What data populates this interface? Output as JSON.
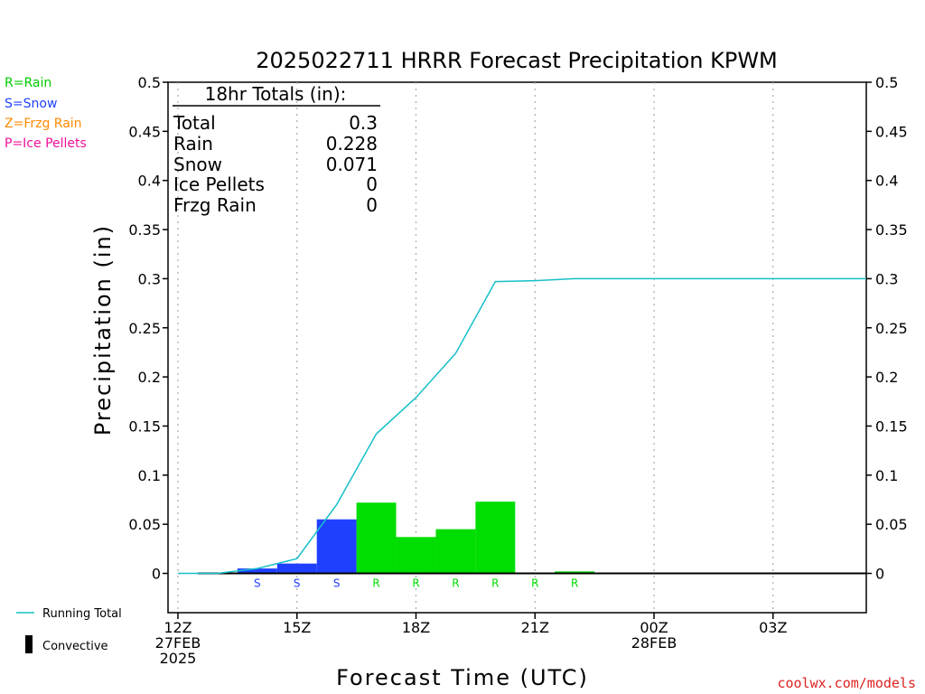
{
  "title": "2025022711 HRRR Forecast Precipitation KPWM",
  "legend": [
    {
      "label": "R=Rain",
      "color": "#00cc00"
    },
    {
      "label": "S=Snow",
      "color": "#2040ff"
    },
    {
      "label": "Z=Frzg Rain",
      "color": "#ff8800"
    },
    {
      "label": "P=Ice Pellets",
      "color": "#ee1199"
    }
  ],
  "totals": {
    "header": "18hr Totals (in):",
    "rows": [
      {
        "label": "Total",
        "value": "0.3"
      },
      {
        "label": "Rain",
        "value": "0.228"
      },
      {
        "label": "Snow",
        "value": "0.071"
      },
      {
        "label": "Ice Pellets",
        "value": "0"
      },
      {
        "label": "Frzg Rain",
        "value": "0"
      }
    ]
  },
  "bottom_legend": {
    "running_total": "Running Total",
    "convective": "Convective"
  },
  "credit": "coolwx.com/models",
  "colors": {
    "rain": "#00dd00",
    "snow": "#2040ff",
    "running_total": "#17c0c8",
    "grid": "#aaaaaa"
  },
  "chart_data": {
    "type": "bar",
    "title": "2025022711 HRRR Forecast Precipitation KPWM",
    "xlabel": "Forecast Time (UTC)",
    "ylabel": "Precipitation (in)",
    "ylim": [
      -0.04,
      0.5
    ],
    "xlim_hours": [
      11.75,
      29.35
    ],
    "yticks": [
      0,
      0.05,
      0.1,
      0.15,
      0.2,
      0.25,
      0.3,
      0.35,
      0.4,
      0.45,
      0.5
    ],
    "ytick_labels": [
      "0",
      "0.05",
      "0.1",
      "0.15",
      "0.2",
      "0.25",
      "0.3",
      "0.35",
      "0.4",
      "0.45",
      "0.5"
    ],
    "xticks": [
      {
        "hour": 12,
        "lines": [
          "12Z",
          "27FEB",
          "2025"
        ]
      },
      {
        "hour": 15,
        "lines": [
          "15Z"
        ]
      },
      {
        "hour": 18,
        "lines": [
          "18Z"
        ]
      },
      {
        "hour": 21,
        "lines": [
          "21Z"
        ]
      },
      {
        "hour": 24,
        "lines": [
          "00Z",
          "28FEB"
        ]
      },
      {
        "hour": 27,
        "lines": [
          "03Z"
        ]
      }
    ],
    "grid": "vertical dotted",
    "hourly_bars": [
      {
        "hour": 13,
        "value": 0.0,
        "type": ""
      },
      {
        "hour": 14,
        "value": 0.005,
        "type": "S"
      },
      {
        "hour": 15,
        "value": 0.01,
        "type": "S"
      },
      {
        "hour": 16,
        "value": 0.055,
        "type": "S"
      },
      {
        "hour": 17,
        "value": 0.072,
        "type": "R"
      },
      {
        "hour": 18,
        "value": 0.037,
        "type": "R"
      },
      {
        "hour": 19,
        "value": 0.045,
        "type": "R"
      },
      {
        "hour": 20,
        "value": 0.073,
        "type": "R"
      },
      {
        "hour": 21,
        "value": 0.0,
        "type": "R"
      },
      {
        "hour": 22,
        "value": 0.002,
        "type": "R"
      },
      {
        "hour": 23,
        "value": 0.0,
        "type": ""
      },
      {
        "hour": 24,
        "value": 0.0,
        "type": ""
      },
      {
        "hour": 25,
        "value": 0.0,
        "type": ""
      },
      {
        "hour": 26,
        "value": 0.0,
        "type": ""
      },
      {
        "hour": 27,
        "value": 0.0,
        "type": ""
      },
      {
        "hour": 28,
        "value": 0.0,
        "type": ""
      },
      {
        "hour": 29,
        "value": 0.0,
        "type": ""
      }
    ],
    "running_total": {
      "name": "Running Total",
      "x": [
        12,
        13,
        14,
        15,
        16,
        17,
        18,
        19,
        20,
        21,
        22,
        23,
        24,
        25,
        26,
        27,
        28,
        29.35
      ],
      "y": [
        0.0,
        0.0,
        0.005,
        0.015,
        0.07,
        0.142,
        0.179,
        0.224,
        0.297,
        0.298,
        0.3,
        0.3,
        0.3,
        0.3,
        0.3,
        0.3,
        0.3,
        0.3
      ]
    }
  }
}
